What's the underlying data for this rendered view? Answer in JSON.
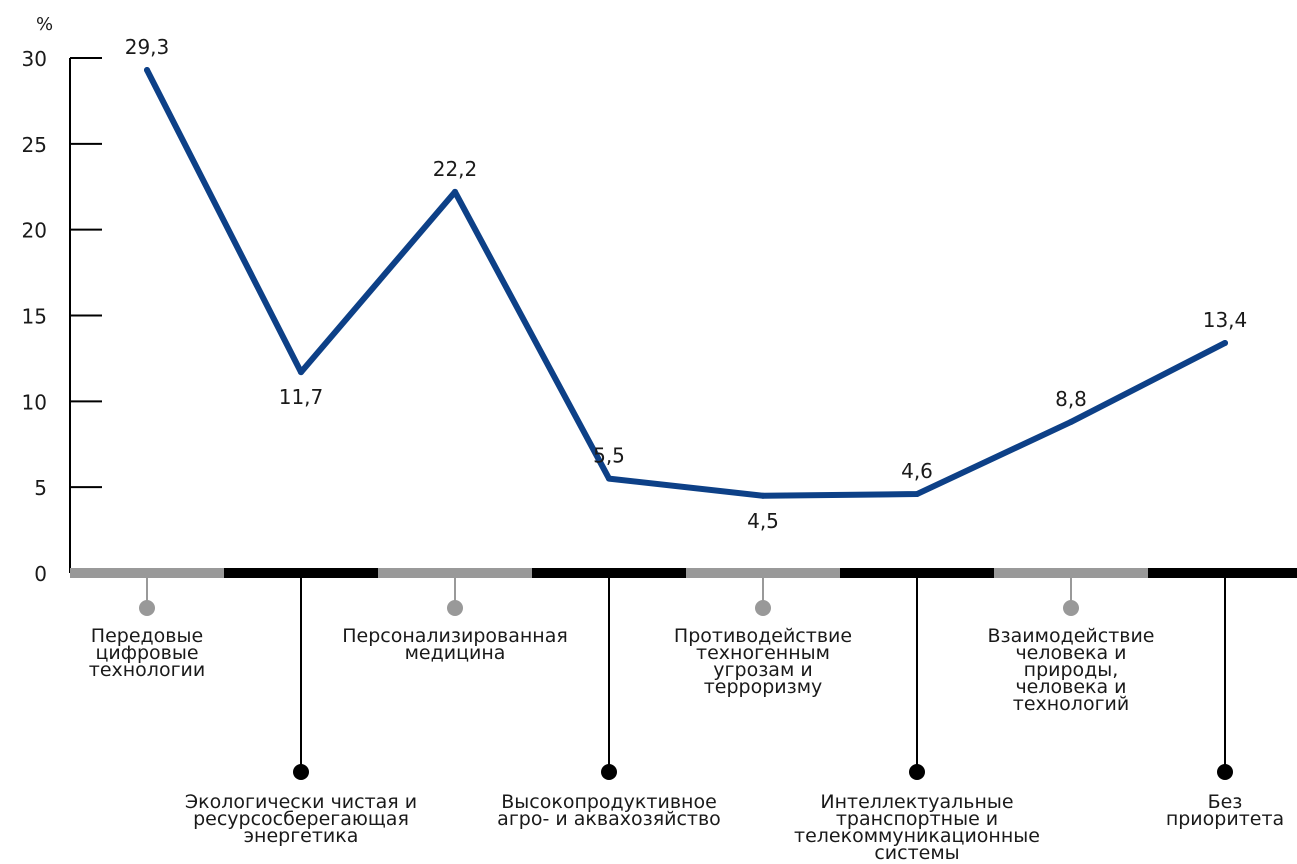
{
  "chart_data": {
    "type": "line",
    "ylabel": "%",
    "ylim": [
      0,
      30
    ],
    "yticks": [
      "0",
      "5",
      "10",
      "15",
      "20",
      "25",
      "30"
    ],
    "grid": false,
    "line_color": "#0d4087",
    "categories": [
      "Передовые цифровые технологии",
      "Экологически чистая и ресурсосберегающая энергетика",
      "Персонализированная медицина",
      "Высокопродуктивное агро- и аквахозяйство",
      "Противодействие техногенным угрозам и терроризму",
      "Интеллектуальные транспортные и телекоммуникационные системы",
      "Взаимодействие человека и природы, человека и технологий",
      "Без приоритета"
    ],
    "category_lines": [
      [
        "Передовые",
        "цифровые",
        "технологии"
      ],
      [
        "Экологически чистая и",
        "ресурсосберегающая",
        "энергетика"
      ],
      [
        "Персонализированная",
        "медицина"
      ],
      [
        "Высокопродуктивное",
        "агро- и аквахозяйство"
      ],
      [
        "Противодействие",
        "техногенным",
        "угрозам и",
        "терроризму"
      ],
      [
        "Интеллектуальные",
        "транспортные и",
        "телекоммуникационные",
        "системы"
      ],
      [
        "Взаимодействие",
        "человека и",
        "природы,",
        "человека и",
        "технологий"
      ],
      [
        "Без",
        "приоритета"
      ]
    ],
    "values": [
      29.3,
      11.7,
      22.2,
      5.5,
      4.5,
      4.6,
      8.8,
      13.4
    ],
    "data_labels": [
      "29,3",
      "11,7",
      "22,2",
      "5,5",
      "4,5",
      "4,6",
      "8,8",
      "13,4"
    ]
  }
}
